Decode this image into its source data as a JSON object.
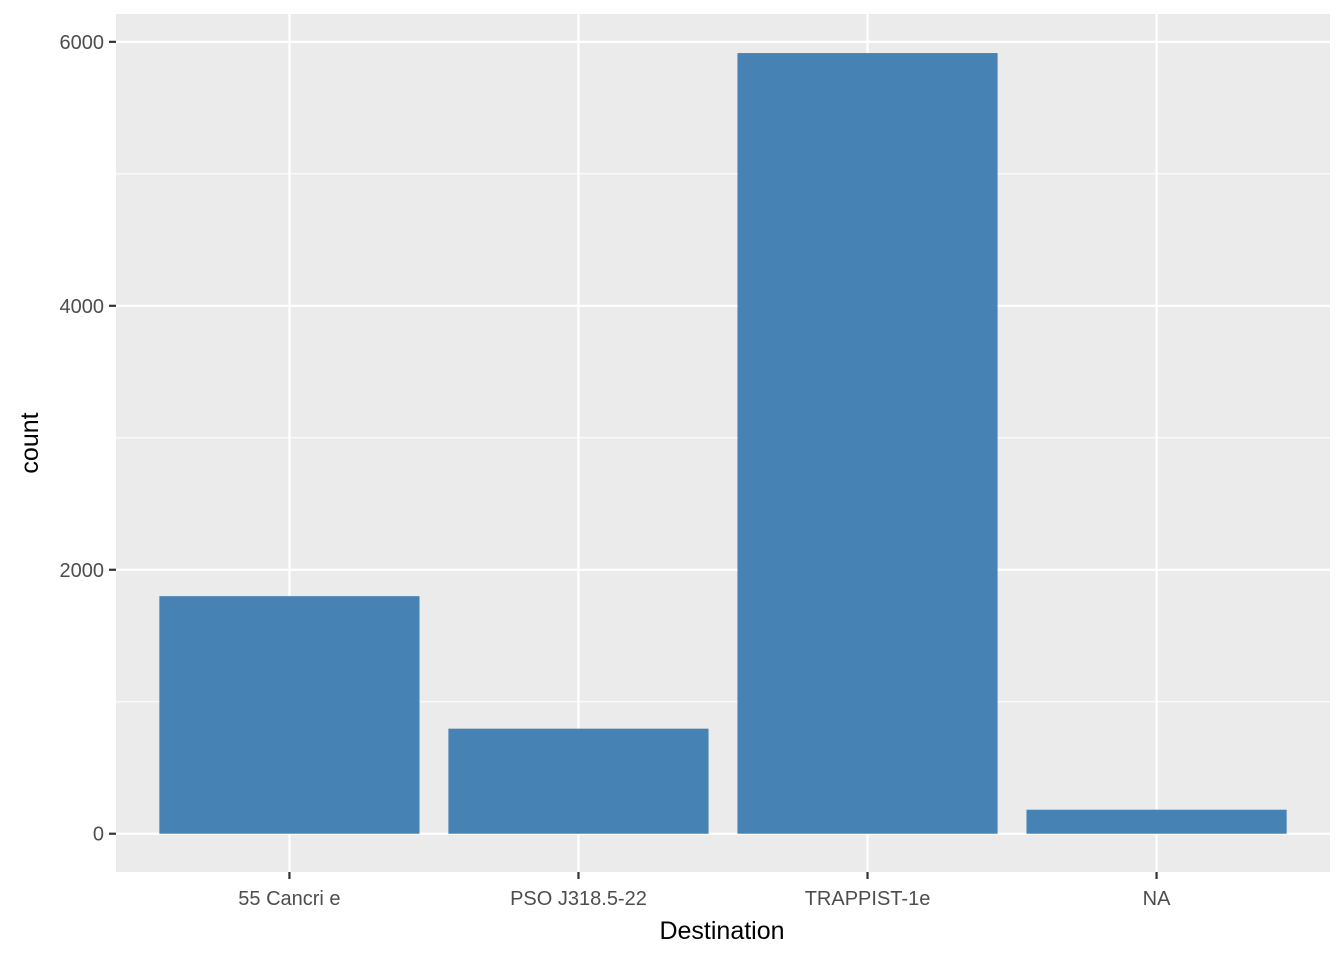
{
  "chart_data": {
    "type": "bar",
    "title": "",
    "xlabel": "Destination",
    "ylabel": "count",
    "categories": [
      "55 Cancri e",
      "PSO J318.5-22",
      "TRAPPIST-1e",
      "NA"
    ],
    "values": [
      1800,
      796,
      5915,
      182
    ],
    "ylim": [
      -290,
      6211
    ],
    "yticks": [
      0,
      2000,
      4000,
      6000
    ],
    "ytick_labels": [
      "0",
      "2000",
      "4000",
      "6000"
    ],
    "grid": true,
    "bar_color": "#4682B4",
    "panel_background": "#EBEBEB",
    "grid_color": "#FFFFFF",
    "legend": "none"
  }
}
